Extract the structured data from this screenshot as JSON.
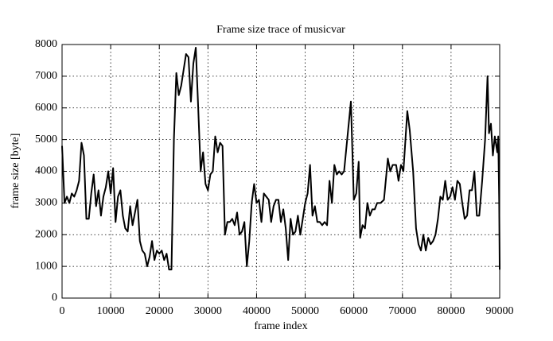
{
  "chart_data": {
    "type": "line",
    "title": "Frame size trace of musicvar",
    "x_label": "frame index",
    "y_label": "frame size [byte]",
    "xlim": [
      0,
      90000
    ],
    "xticks": [
      0,
      10000,
      20000,
      30000,
      40000,
      50000,
      60000,
      70000,
      80000,
      90000
    ],
    "ylim": [
      0,
      8000
    ],
    "yticks": [
      0,
      1000,
      2000,
      3000,
      4000,
      5000,
      6000,
      7000,
      8000
    ],
    "grid": true,
    "x": [
      0,
      500,
      1000,
      1500,
      2000,
      2500,
      3000,
      3500,
      4000,
      4500,
      5000,
      5500,
      6000,
      6500,
      7000,
      7500,
      8000,
      8500,
      9000,
      9500,
      10000,
      10500,
      11000,
      11500,
      12000,
      12500,
      13000,
      13500,
      14000,
      14500,
      15000,
      15500,
      16000,
      16500,
      17000,
      17500,
      18000,
      18500,
      19000,
      19500,
      20000,
      20500,
      21000,
      21500,
      22000,
      22500,
      23000,
      23500,
      24000,
      24500,
      25000,
      25500,
      26000,
      26500,
      27000,
      27500,
      28000,
      28500,
      29000,
      29500,
      30000,
      30500,
      31000,
      31500,
      32000,
      32500,
      33000,
      33500,
      34000,
      34500,
      35000,
      35500,
      36000,
      36500,
      37000,
      37500,
      38000,
      38500,
      39000,
      39500,
      40000,
      40500,
      41000,
      41500,
      42000,
      42500,
      43000,
      43500,
      44000,
      44500,
      45000,
      45500,
      46000,
      46500,
      47000,
      47500,
      48000,
      48500,
      49000,
      49500,
      50000,
      50500,
      51000,
      51500,
      52000,
      52500,
      53000,
      53500,
      54000,
      54500,
      55000,
      55500,
      56000,
      56500,
      57000,
      57500,
      58000,
      59400,
      60000,
      60500,
      61000,
      61300,
      61800,
      62300,
      62800,
      63300,
      63800,
      64300,
      64800,
      65500,
      66200,
      67000,
      67500,
      68000,
      68700,
      69200,
      69700,
      70200,
      71000,
      71500,
      72200,
      72800,
      73300,
      73800,
      74300,
      74800,
      75300,
      75800,
      76300,
      76800,
      77300,
      77800,
      78300,
      78800,
      79300,
      79800,
      80300,
      80800,
      81300,
      81800,
      82300,
      82800,
      83300,
      83800,
      84300,
      84800,
      85300,
      85800,
      86400,
      87000,
      87500,
      87800,
      88200,
      88600,
      89000,
      89500,
      89700,
      89900,
      90000
    ],
    "series": [
      {
        "name": "musicvar",
        "color": "#000000",
        "values": [
          4800,
          3000,
          3200,
          3000,
          3300,
          3200,
          3400,
          3700,
          4900,
          4500,
          2500,
          2500,
          3300,
          3900,
          2900,
          3400,
          2600,
          3200,
          3500,
          4000,
          3300,
          4100,
          2400,
          3200,
          3400,
          2600,
          2200,
          2100,
          2900,
          2300,
          2700,
          3100,
          1800,
          1500,
          1400,
          1000,
          1300,
          1800,
          1200,
          1500,
          1400,
          1500,
          1200,
          1400,
          900,
          900,
          5000,
          7100,
          6400,
          6700,
          7200,
          7700,
          7600,
          6200,
          7400,
          7900,
          6000,
          4000,
          4600,
          3600,
          3400,
          3900,
          4000,
          5100,
          4600,
          4900,
          4800,
          2000,
          2400,
          2400,
          2500,
          2300,
          2700,
          2000,
          2100,
          2400,
          1000,
          1800,
          3000,
          3600,
          3000,
          3100,
          2400,
          3300,
          3200,
          3100,
          2400,
          2900,
          3100,
          3100,
          2400,
          2800,
          2200,
          1200,
          2500,
          2000,
          2100,
          2600,
          2000,
          2500,
          3000,
          3300,
          4200,
          2600,
          2900,
          2400,
          2400,
          2300,
          2400,
          2300,
          3700,
          3000,
          4200,
          3900,
          4000,
          3900,
          4000,
          6200,
          3100,
          3300,
          4300,
          1900,
          2300,
          2200,
          3000,
          2600,
          2800,
          2800,
          3000,
          3000,
          3100,
          4400,
          4000,
          4200,
          4200,
          3700,
          4200,
          4000,
          5900,
          5300,
          4000,
          2200,
          1700,
          1500,
          2000,
          1500,
          1900,
          1700,
          1800,
          2000,
          2500,
          3200,
          3100,
          3700,
          3100,
          3200,
          3500,
          3100,
          3700,
          3600,
          3000,
          2500,
          2600,
          3400,
          3400,
          4000,
          2600,
          2600,
          3700,
          5000,
          7000,
          5200,
          5500,
          4500,
          5100,
          4600,
          5100,
          3000,
          900
        ]
      }
    ]
  }
}
